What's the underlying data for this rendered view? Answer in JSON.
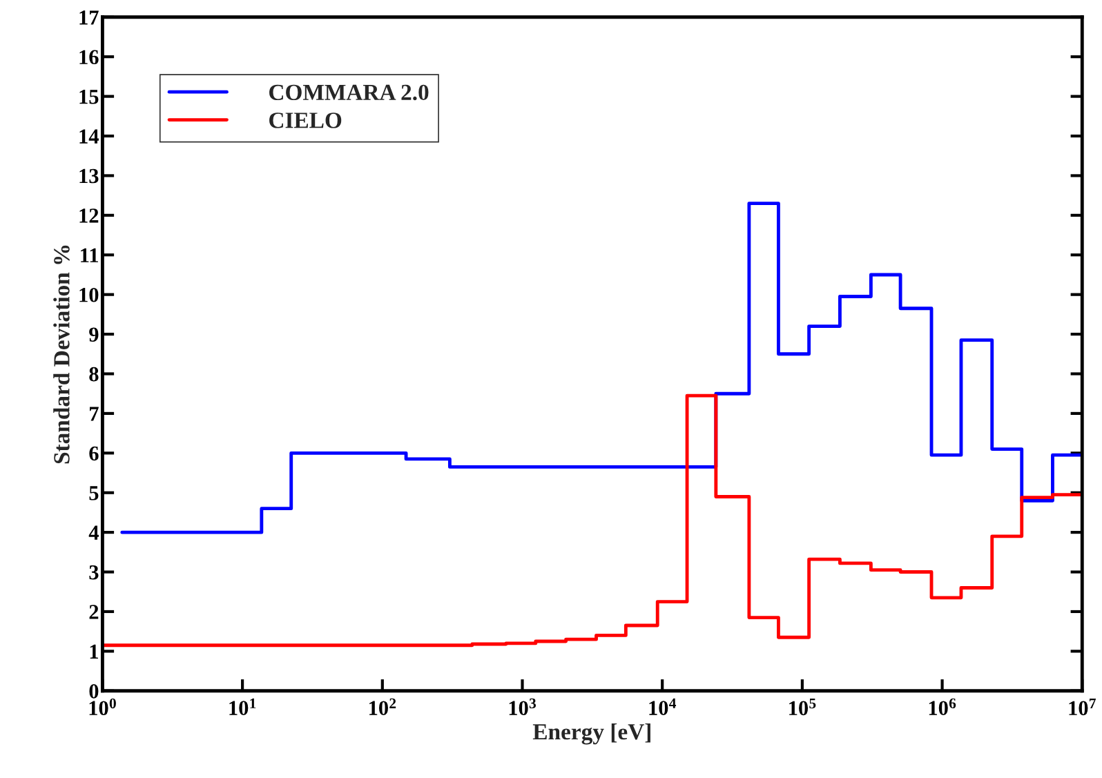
{
  "chart_data": {
    "type": "step",
    "xlabel": "Energy [eV]",
    "ylabel": "Standard Deviation %",
    "log": "x",
    "xlim": [
      1,
      10000000
    ],
    "ylim": [
      0,
      17
    ],
    "xticks": [
      {
        "value": 1,
        "label": "10$^{0}$"
      },
      {
        "value": 10,
        "label": "10$^{1}$"
      },
      {
        "value": 100,
        "label": "10$^{2}$"
      },
      {
        "value": 1000,
        "label": "10$^{3}$"
      },
      {
        "value": 10000,
        "label": "10$^{4}$"
      },
      {
        "value": 100000,
        "label": "10$^{5}$"
      },
      {
        "value": 1000000,
        "label": "10$^{6}$"
      },
      {
        "value": 10000000,
        "label": "10$^{7}$"
      }
    ],
    "yticks": [
      0,
      1,
      2,
      3,
      4,
      5,
      6,
      7,
      8,
      9,
      10,
      11,
      12,
      13,
      14,
      15,
      16,
      17
    ],
    "legend": "top left",
    "grid": false,
    "series": [
      {
        "name": "COMMARA 2.0",
        "color": "#0000ff",
        "x": [
          1.38,
          13.7,
          22.3,
          147.6,
          303,
          24160,
          41700,
          67600,
          111700,
          185800,
          309600,
          503000,
          838000,
          1365000,
          2270000,
          3700000,
          6150000,
          10000000
        ],
        "values": [
          4.0,
          4.6,
          6.0,
          5.85,
          5.65,
          7.5,
          12.3,
          8.5,
          9.2,
          9.95,
          10.5,
          9.65,
          5.95,
          8.85,
          6.1,
          4.8,
          5.95,
          5.95
        ]
      },
      {
        "name": "CIELO",
        "color": "#ff0000",
        "x": [
          1,
          438,
          765,
          1245,
          2048,
          3373,
          5486,
          9240,
          15030,
          24160,
          41700,
          67600,
          111700,
          185800,
          309600,
          503000,
          838000,
          1365000,
          2270000,
          3700000,
          6150000,
          10000000
        ],
        "values": [
          1.15,
          1.18,
          1.2,
          1.25,
          1.3,
          1.4,
          1.65,
          2.25,
          7.45,
          4.9,
          1.85,
          1.35,
          3.32,
          3.22,
          3.05,
          3.0,
          2.35,
          2.6,
          3.9,
          4.88,
          4.95,
          4.95
        ]
      }
    ]
  }
}
